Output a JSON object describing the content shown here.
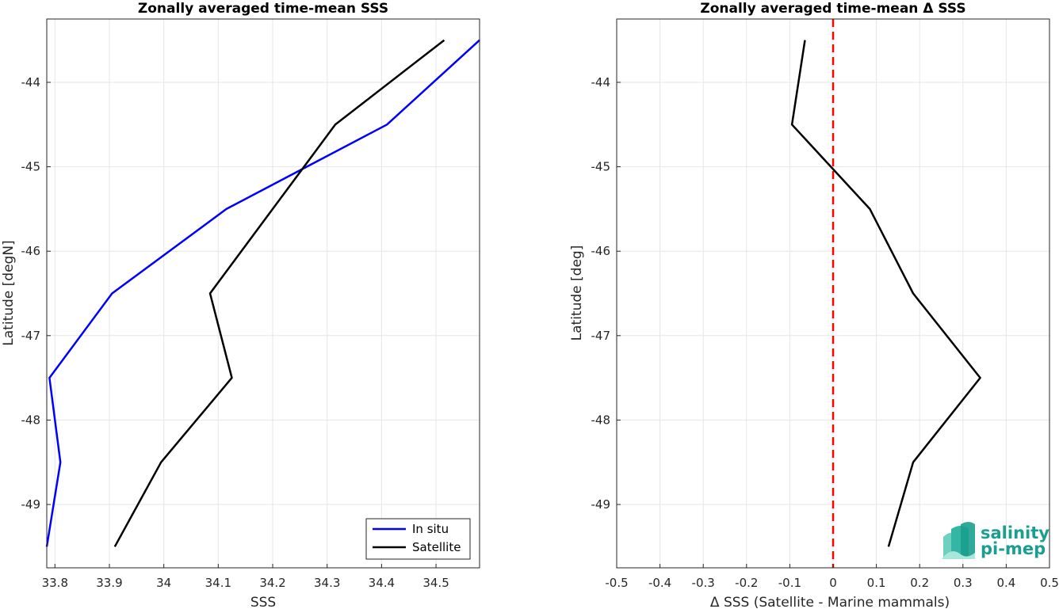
{
  "chart_data": [
    {
      "type": "line",
      "title": "Zonally averaged time-mean SSS",
      "xlabel": "SSS",
      "ylabel": "Latitude [degN]",
      "xlim": [
        33.785,
        34.58
      ],
      "ylim": [
        -49.75,
        -43.25
      ],
      "xticks": [
        "33.8",
        "33.9",
        "34",
        "34.1",
        "34.2",
        "34.3",
        "34.4",
        "34.5"
      ],
      "xtick_values": [
        33.8,
        33.9,
        34.0,
        34.1,
        34.2,
        34.3,
        34.4,
        34.5
      ],
      "yticks": [
        "-44",
        "-45",
        "-46",
        "-47",
        "-48",
        "-49"
      ],
      "ytick_values": [
        -44,
        -45,
        -46,
        -47,
        -48,
        -49
      ],
      "grid": true,
      "legend_position": "bottom-right",
      "series": [
        {
          "name": "In situ",
          "color": "#0000ff",
          "x": [
            34.58,
            34.41,
            34.115,
            33.905,
            33.79,
            33.81,
            33.785
          ],
          "y": [
            -43.5,
            -44.5,
            -45.5,
            -46.5,
            -47.5,
            -48.5,
            -49.5
          ]
        },
        {
          "name": "Satellite",
          "color": "#000000",
          "x": [
            34.515,
            34.315,
            34.2,
            34.085,
            34.125,
            33.995,
            33.91
          ],
          "y": [
            -43.5,
            -44.5,
            -45.5,
            -46.5,
            -47.5,
            -48.5,
            -49.5
          ]
        }
      ]
    },
    {
      "type": "line",
      "title": "Zonally averaged time-mean Δ SSS",
      "xlabel": "Δ SSS (Satellite - Marine mammals)",
      "ylabel": "Latitude [deg]",
      "xlim": [
        -0.5,
        0.5
      ],
      "ylim": [
        -49.75,
        -43.25
      ],
      "xticks": [
        "-0.5",
        "-0.4",
        "-0.3",
        "-0.2",
        "-0.1",
        "0",
        "0.1",
        "0.2",
        "0.3",
        "0.4",
        "0.5"
      ],
      "xtick_values": [
        -0.5,
        -0.4,
        -0.3,
        -0.2,
        -0.1,
        0,
        0.1,
        0.2,
        0.3,
        0.4,
        0.5
      ],
      "yticks": [
        "-44",
        "-45",
        "-46",
        "-47",
        "-48",
        "-49"
      ],
      "ytick_values": [
        -44,
        -45,
        -46,
        -47,
        -48,
        -49
      ],
      "grid": true,
      "reference_line": {
        "x": 0,
        "color": "#ff0000",
        "style": "dashed"
      },
      "series": [
        {
          "color": "#000000",
          "x": [
            -0.065,
            -0.095,
            0.085,
            0.185,
            0.34,
            0.185,
            0.128
          ],
          "y": [
            -43.5,
            -44.5,
            -45.5,
            -46.5,
            -47.5,
            -48.5,
            -49.5
          ]
        }
      ]
    }
  ],
  "logo": {
    "line1": "salinity",
    "line2": "pi-mep",
    "color": "#1a9e8f"
  }
}
